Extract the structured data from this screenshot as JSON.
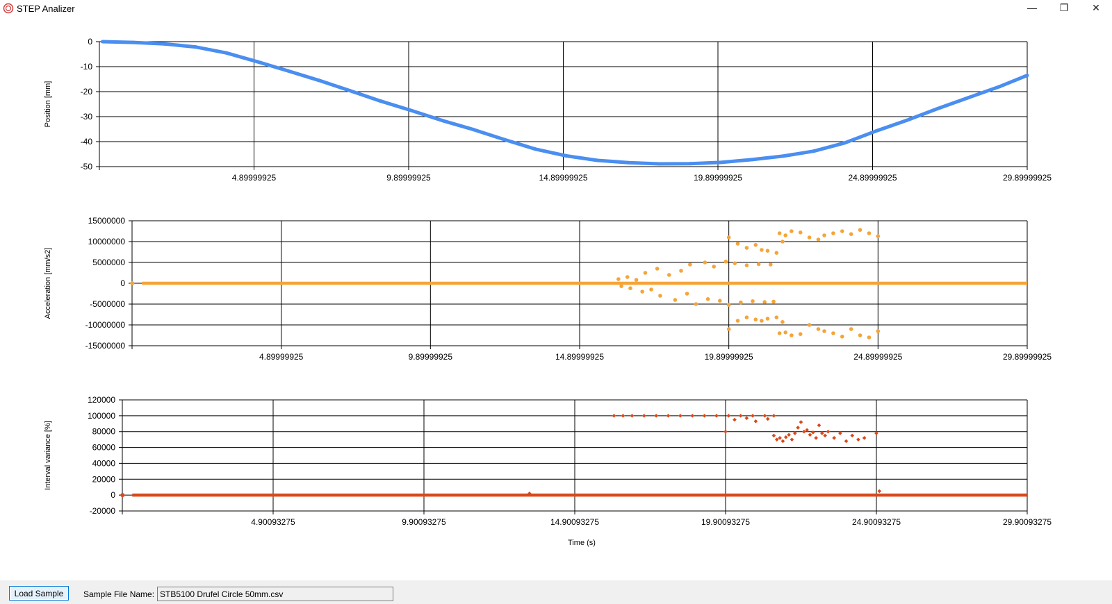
{
  "window": {
    "title": "STEP Analizer",
    "minimize_glyph": "—",
    "restore_glyph": "❐",
    "close_glyph": "✕"
  },
  "charts": [
    {
      "id": "position",
      "type": "line",
      "ylabel": "Position [mm]",
      "xlabel": "",
      "color": "#4a8ef0",
      "ylim": [
        -50,
        0
      ],
      "yticks": [
        "0",
        "-10",
        "-20",
        "-30",
        "-40",
        "-50"
      ],
      "xlim": [
        -0.10000075,
        29.89999925
      ],
      "xticks": [
        "4.89999925",
        "9.89999925",
        "14.89999925",
        "19.89999925",
        "24.89999925",
        "29.89999925"
      ]
    },
    {
      "id": "acceleration",
      "type": "scatter",
      "ylabel": "Acceleration [mm/s2]",
      "xlabel": "",
      "color": "#f4a53a",
      "ylim": [
        -15000000,
        15000000
      ],
      "yticks": [
        "15000000",
        "10000000",
        "5000000",
        "0",
        "-5000000",
        "-10000000",
        "-15000000"
      ],
      "xlim": [
        -0.10000075,
        29.89999925
      ],
      "xticks": [
        "4.89999925",
        "9.89999925",
        "14.89999925",
        "19.89999925",
        "24.89999925",
        "29.89999925"
      ]
    },
    {
      "id": "interval-variance",
      "type": "scatter",
      "ylabel": "Interval variance [%]",
      "xlabel": "Time (s)",
      "color": "#d9481a",
      "ylim": [
        -20000,
        120000
      ],
      "yticks": [
        "120000",
        "100000",
        "80000",
        "60000",
        "40000",
        "20000",
        "0",
        "-20000"
      ],
      "xlim": [
        -0.09906725,
        29.90093275
      ],
      "xticks": [
        "4.90093275",
        "9.90093275",
        "14.90093275",
        "19.90093275",
        "24.90093275",
        "29.90093275"
      ]
    }
  ],
  "chart_data": [
    {
      "type": "line",
      "ylabel": "Position [mm]",
      "x": [
        0,
        1,
        2,
        3,
        4,
        5,
        6,
        7,
        8,
        9,
        10,
        11,
        12,
        13,
        14,
        15,
        16,
        17,
        18,
        19,
        20,
        21,
        22,
        23,
        24,
        25,
        26,
        27,
        28,
        29,
        29.9
      ],
      "y": [
        0,
        -0.3,
        -0.9,
        -2.1,
        -4.5,
        -8,
        -11.7,
        -15.5,
        -19.6,
        -23.8,
        -27.6,
        -31.6,
        -35.2,
        -39.2,
        -43,
        -45.7,
        -47.5,
        -48.4,
        -48.9,
        -48.8,
        -48.3,
        -47.2,
        -45.8,
        -43.8,
        -40.5,
        -35.8,
        -31.5,
        -26.8,
        -22.4,
        -18,
        -13.5
      ],
      "ylim": [
        -50,
        0
      ]
    },
    {
      "type": "scatter",
      "ylabel": "Acceleration [mm/s2]",
      "baseline": {
        "x_range": [
          0,
          29.9
        ],
        "y": 0
      },
      "points": [
        [
          16.2,
          1000000
        ],
        [
          16.3,
          -700000
        ],
        [
          16.5,
          1500000
        ],
        [
          16.6,
          -1200000
        ],
        [
          16.8,
          800000
        ],
        [
          17.0,
          -2000000
        ],
        [
          17.1,
          2500000
        ],
        [
          17.3,
          -1500000
        ],
        [
          17.5,
          3500000
        ],
        [
          17.6,
          -3000000
        ],
        [
          17.9,
          2000000
        ],
        [
          18.1,
          -4000000
        ],
        [
          18.3,
          3000000
        ],
        [
          18.5,
          -2500000
        ],
        [
          18.6,
          4500000
        ],
        [
          18.8,
          -5000000
        ],
        [
          19.1,
          5000000
        ],
        [
          19.2,
          -3800000
        ],
        [
          19.4,
          4000000
        ],
        [
          19.6,
          -4200000
        ],
        [
          19.8,
          5200000
        ],
        [
          19.9,
          -5200000
        ],
        [
          20.1,
          4800000
        ],
        [
          20.3,
          -4600000
        ],
        [
          20.5,
          4300000
        ],
        [
          20.7,
          -4300000
        ],
        [
          20.9,
          4600000
        ],
        [
          21.1,
          -4500000
        ],
        [
          21.3,
          4500000
        ],
        [
          21.4,
          -4400000
        ],
        [
          19.9,
          11000000
        ],
        [
          19.9,
          -11000000
        ],
        [
          20.2,
          9500000
        ],
        [
          20.2,
          -9000000
        ],
        [
          20.5,
          8500000
        ],
        [
          20.5,
          -8200000
        ],
        [
          20.8,
          9200000
        ],
        [
          20.8,
          -8700000
        ],
        [
          21.0,
          8000000
        ],
        [
          21.0,
          -9000000
        ],
        [
          21.2,
          7800000
        ],
        [
          21.2,
          -8500000
        ],
        [
          21.5,
          7300000
        ],
        [
          21.5,
          -8200000
        ],
        [
          21.7,
          10000000
        ],
        [
          21.7,
          -9300000
        ],
        [
          21.6,
          12000000
        ],
        [
          21.6,
          -12000000
        ],
        [
          21.8,
          11500000
        ],
        [
          21.8,
          -11800000
        ],
        [
          22.0,
          12500000
        ],
        [
          22.0,
          -12500000
        ],
        [
          22.3,
          12200000
        ],
        [
          22.3,
          -12200000
        ],
        [
          22.6,
          11000000
        ],
        [
          22.6,
          -10000000
        ],
        [
          22.9,
          10500000
        ],
        [
          22.9,
          -11000000
        ],
        [
          23.1,
          11500000
        ],
        [
          23.1,
          -11500000
        ],
        [
          23.4,
          12000000
        ],
        [
          23.4,
          -12000000
        ],
        [
          23.7,
          12500000
        ],
        [
          23.7,
          -12800000
        ],
        [
          24.0,
          11800000
        ],
        [
          24.0,
          -11000000
        ],
        [
          24.3,
          12800000
        ],
        [
          24.3,
          -12500000
        ],
        [
          24.6,
          12000000
        ],
        [
          24.6,
          -13000000
        ],
        [
          24.9,
          11300000
        ],
        [
          24.9,
          -11500000
        ]
      ],
      "ylim": [
        -15000000,
        15000000
      ]
    },
    {
      "type": "scatter",
      "ylabel": "Interval variance [%]",
      "xlabel": "Time (s)",
      "baseline": {
        "x_range": [
          0,
          29.9
        ],
        "y": 0
      },
      "points": [
        [
          16.2,
          100000
        ],
        [
          16.5,
          100000
        ],
        [
          16.8,
          100000
        ],
        [
          17.2,
          100000
        ],
        [
          17.6,
          100000
        ],
        [
          18.0,
          100000
        ],
        [
          18.4,
          100000
        ],
        [
          18.8,
          100000
        ],
        [
          19.2,
          100000
        ],
        [
          19.6,
          100000
        ],
        [
          20.0,
          100000
        ],
        [
          20.4,
          100000
        ],
        [
          20.8,
          100000
        ],
        [
          21.2,
          100000
        ],
        [
          21.5,
          100000
        ],
        [
          19.9,
          80000
        ],
        [
          20.2,
          95000
        ],
        [
          20.6,
          97000
        ],
        [
          20.9,
          93000
        ],
        [
          21.3,
          96000
        ],
        [
          21.5,
          75000
        ],
        [
          21.6,
          70000
        ],
        [
          21.7,
          72000
        ],
        [
          21.8,
          68000
        ],
        [
          21.9,
          73000
        ],
        [
          22.0,
          76000
        ],
        [
          22.1,
          70000
        ],
        [
          22.2,
          78000
        ],
        [
          22.3,
          85000
        ],
        [
          22.4,
          92000
        ],
        [
          22.5,
          80000
        ],
        [
          22.6,
          82000
        ],
        [
          22.7,
          76000
        ],
        [
          22.8,
          79000
        ],
        [
          22.9,
          72000
        ],
        [
          23.0,
          88000
        ],
        [
          23.1,
          78000
        ],
        [
          23.2,
          75000
        ],
        [
          23.3,
          80000
        ],
        [
          23.5,
          72000
        ],
        [
          23.7,
          78000
        ],
        [
          23.9,
          68000
        ],
        [
          24.1,
          75000
        ],
        [
          24.3,
          70000
        ],
        [
          24.5,
          72000
        ],
        [
          24.9,
          78000
        ],
        [
          13.4,
          2000
        ],
        [
          25.0,
          5000
        ]
      ],
      "ylim": [
        -20000,
        120000
      ]
    }
  ],
  "bottom": {
    "load_button_label": "Load Sample",
    "sample_label": "Sample File Name:",
    "file_name": "STB5100 Drufel Circle 50mm.csv"
  }
}
